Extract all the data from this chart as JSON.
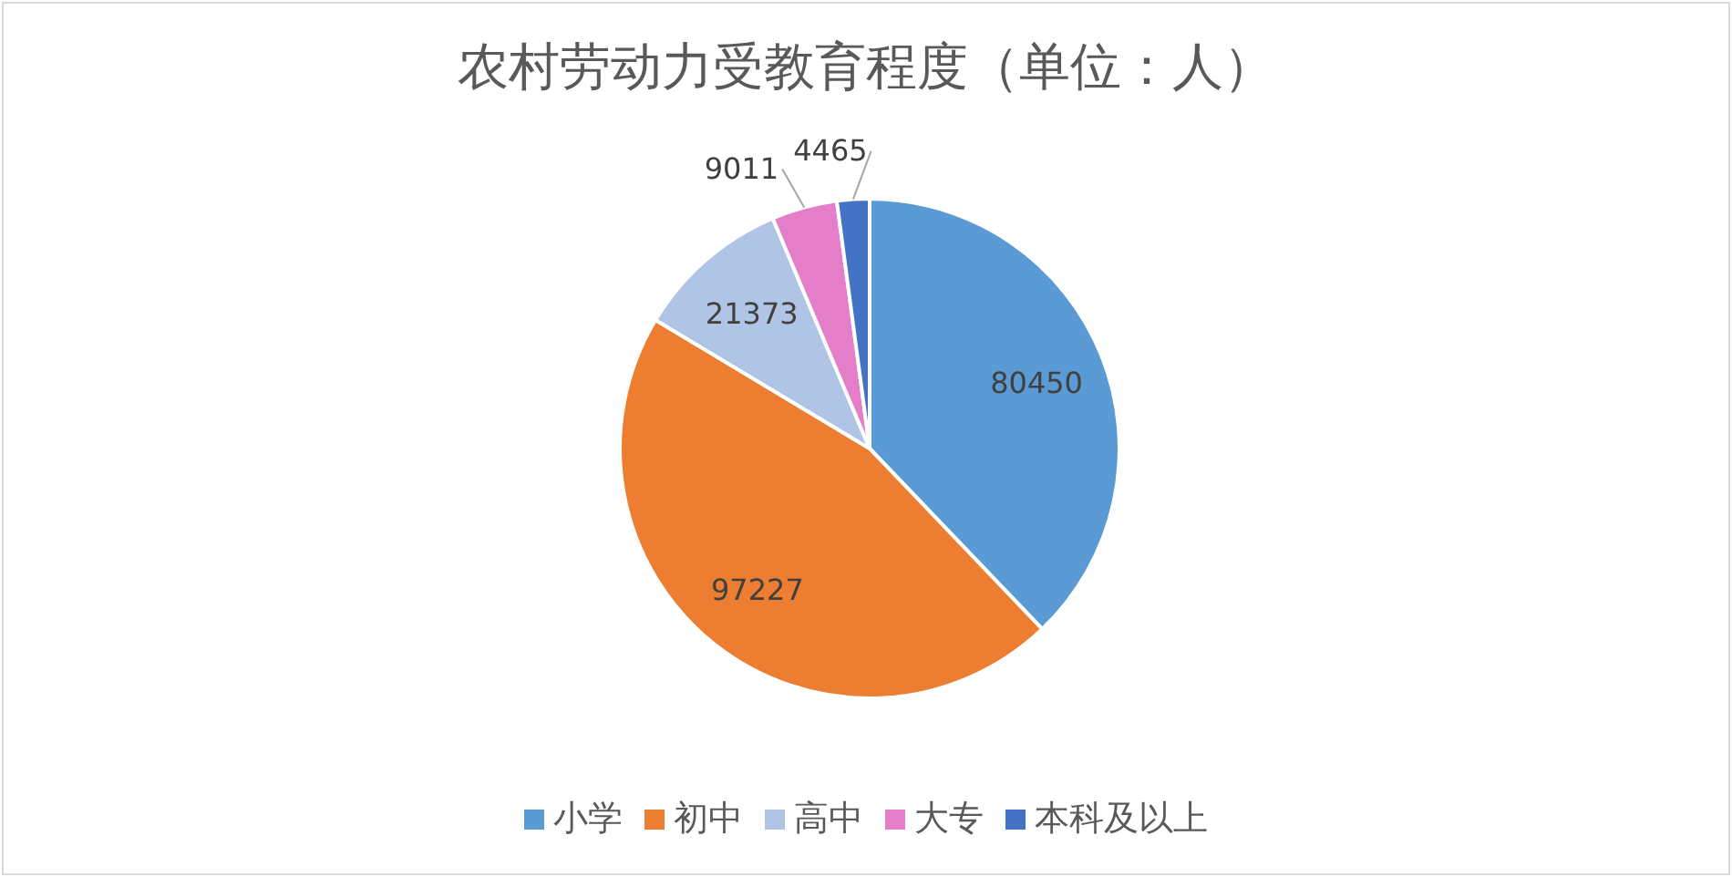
{
  "chart_data": {
    "type": "pie",
    "title": "农村劳动力受教育程度（单位：人）",
    "categories": [
      "小学",
      "初中",
      "高中",
      "大专",
      "本科及以上"
    ],
    "values": [
      80450,
      97227,
      21373,
      9011,
      4465
    ],
    "colors": [
      "#5b9bd5",
      "#ed7d31",
      "#b0c4e6",
      "#e57ec8",
      "#4472c4"
    ],
    "data_labels": true,
    "legend": "bottom"
  }
}
